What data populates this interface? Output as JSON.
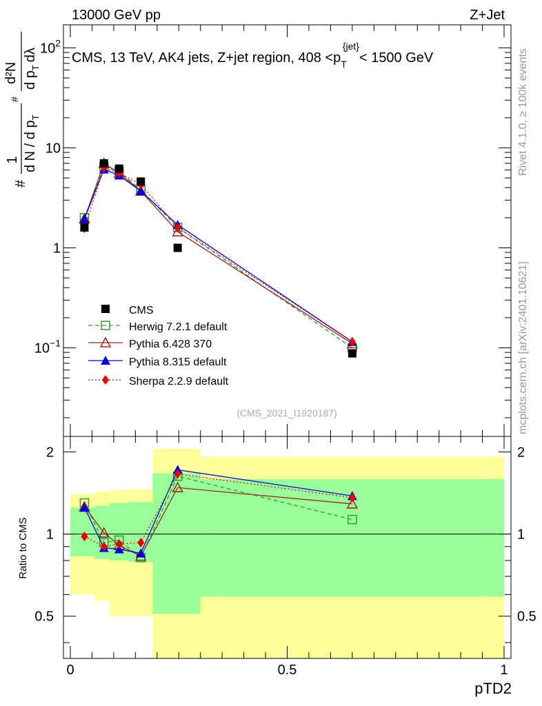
{
  "header": {
    "left": "13000 GeV pp",
    "right": "Z+Jet"
  },
  "side_labels": {
    "rivet": "Rivet 4.1.0, ≥ 100k events",
    "mcplots": "mcplots.cern.ch [arXiv:2401.10621]"
  },
  "colors": {
    "cms": "#000000",
    "herwig": "#339933",
    "pythia6": "#992222",
    "pythia8": "#0000dd",
    "sherpa": "#ee0000",
    "band_outer": "#ffff99",
    "band_inner": "#99ff99"
  },
  "chart_data": [
    {
      "type": "line",
      "panel": "main",
      "title": "CMS, 13 TeV, AK4 jets, Z+jet region, 408 <p_T^{jet}< 1500 GeV",
      "title_parts": {
        "before": "CMS, 13 TeV, AK4 jets, Z+jet region, 408 <p",
        "sub": "T",
        "sup": "{jet}",
        "after": "< 1500 GeV"
      },
      "watermark": "(CMS_2021_I1920187)",
      "ylabel_parts": {
        "hash1": "#",
        "one": "1",
        "dN": "d N / d p",
        "T1": "T",
        "hash2": "#",
        "d2N": "d²N",
        "dpT": "d p",
        "T2": "T",
        "dl": "dλ"
      },
      "xlabel": "pTD2",
      "yscale": "log",
      "xlim": [
        0,
        1
      ],
      "ylim": [
        0.013,
        170
      ],
      "ytick_labels": [
        {
          "value": 100,
          "base": "10",
          "exp": "2"
        },
        {
          "value": 10,
          "base": "10",
          "exp": ""
        },
        {
          "value": 1,
          "base": "1",
          "exp": ""
        },
        {
          "value": 0.1,
          "base": "10",
          "exp": "−1"
        }
      ],
      "legend": [
        "CMS",
        "Herwig 7.2.1 default",
        "Pythia 6.428 370",
        "Pythia 8.315 default",
        "Sherpa 2.2.9 default"
      ],
      "x": [
        0.0325,
        0.0775,
        0.1125,
        0.1625,
        0.2475,
        0.65
      ],
      "series": [
        {
          "name": "CMS",
          "marker": "square",
          "values": [
            1.6,
            7.0,
            6.2,
            4.6,
            1.0,
            0.088
          ]
        },
        {
          "name": "Herwig 7.2.1 default",
          "marker": "open-square",
          "style": "dashed",
          "values": [
            2.0,
            6.5,
            5.8,
            3.8,
            1.6,
            0.1
          ]
        },
        {
          "name": "Pythia 6.428 370",
          "marker": "open-triangle",
          "style": "solid",
          "values": [
            1.95,
            7.0,
            5.6,
            3.7,
            1.45,
            0.11
          ]
        },
        {
          "name": "Pythia 8.315 default",
          "marker": "triangle",
          "style": "solid",
          "values": [
            1.95,
            6.1,
            5.3,
            3.7,
            1.7,
            0.115
          ]
        },
        {
          "name": "Sherpa 2.2.9 default",
          "marker": "diamond",
          "style": "dotted",
          "values": [
            1.57,
            6.3,
            5.6,
            4.3,
            1.6,
            0.115
          ]
        }
      ]
    },
    {
      "type": "line",
      "panel": "ratio",
      "ylabel": "Ratio to CMS",
      "xlabel": "pTD2",
      "xlim": [
        0,
        1
      ],
      "ylim": [
        0.35,
        2.28
      ],
      "xtick_labels": [
        "0",
        "0.5",
        "1"
      ],
      "ytick_labels": [
        "0.5",
        "1",
        "2"
      ],
      "bands": {
        "edges": [
          0,
          0.055,
          0.09,
          0.135,
          0.19,
          0.3,
          1.0
        ],
        "inner": [
          [
            0.83,
            1.25
          ],
          [
            0.81,
            1.27
          ],
          [
            0.8,
            1.3
          ],
          [
            0.79,
            1.31
          ],
          [
            0.51,
            1.67
          ],
          [
            0.59,
            1.59
          ]
        ],
        "outer": [
          [
            0.6,
            1.4
          ],
          [
            0.57,
            1.43
          ],
          [
            0.5,
            1.45
          ],
          [
            0.5,
            1.46
          ],
          [
            0.25,
            2.05
          ],
          [
            0.25,
            1.92
          ]
        ]
      },
      "x": [
        0.0325,
        0.0775,
        0.1125,
        0.1625,
        0.2475,
        0.65
      ],
      "series": [
        {
          "name": "Herwig 7.2.1 default",
          "values": [
            1.3,
            0.93,
            0.95,
            0.82,
            1.63,
            1.13
          ]
        },
        {
          "name": "Pythia 6.428 370",
          "values": [
            1.26,
            1.01,
            0.91,
            0.83,
            1.48,
            1.29
          ]
        },
        {
          "name": "Pythia 8.315 default",
          "values": [
            1.25,
            0.89,
            0.88,
            0.85,
            1.72,
            1.38
          ]
        },
        {
          "name": "Sherpa 2.2.9 default",
          "values": [
            0.98,
            0.9,
            0.92,
            0.93,
            1.66,
            1.36
          ]
        }
      ]
    }
  ]
}
